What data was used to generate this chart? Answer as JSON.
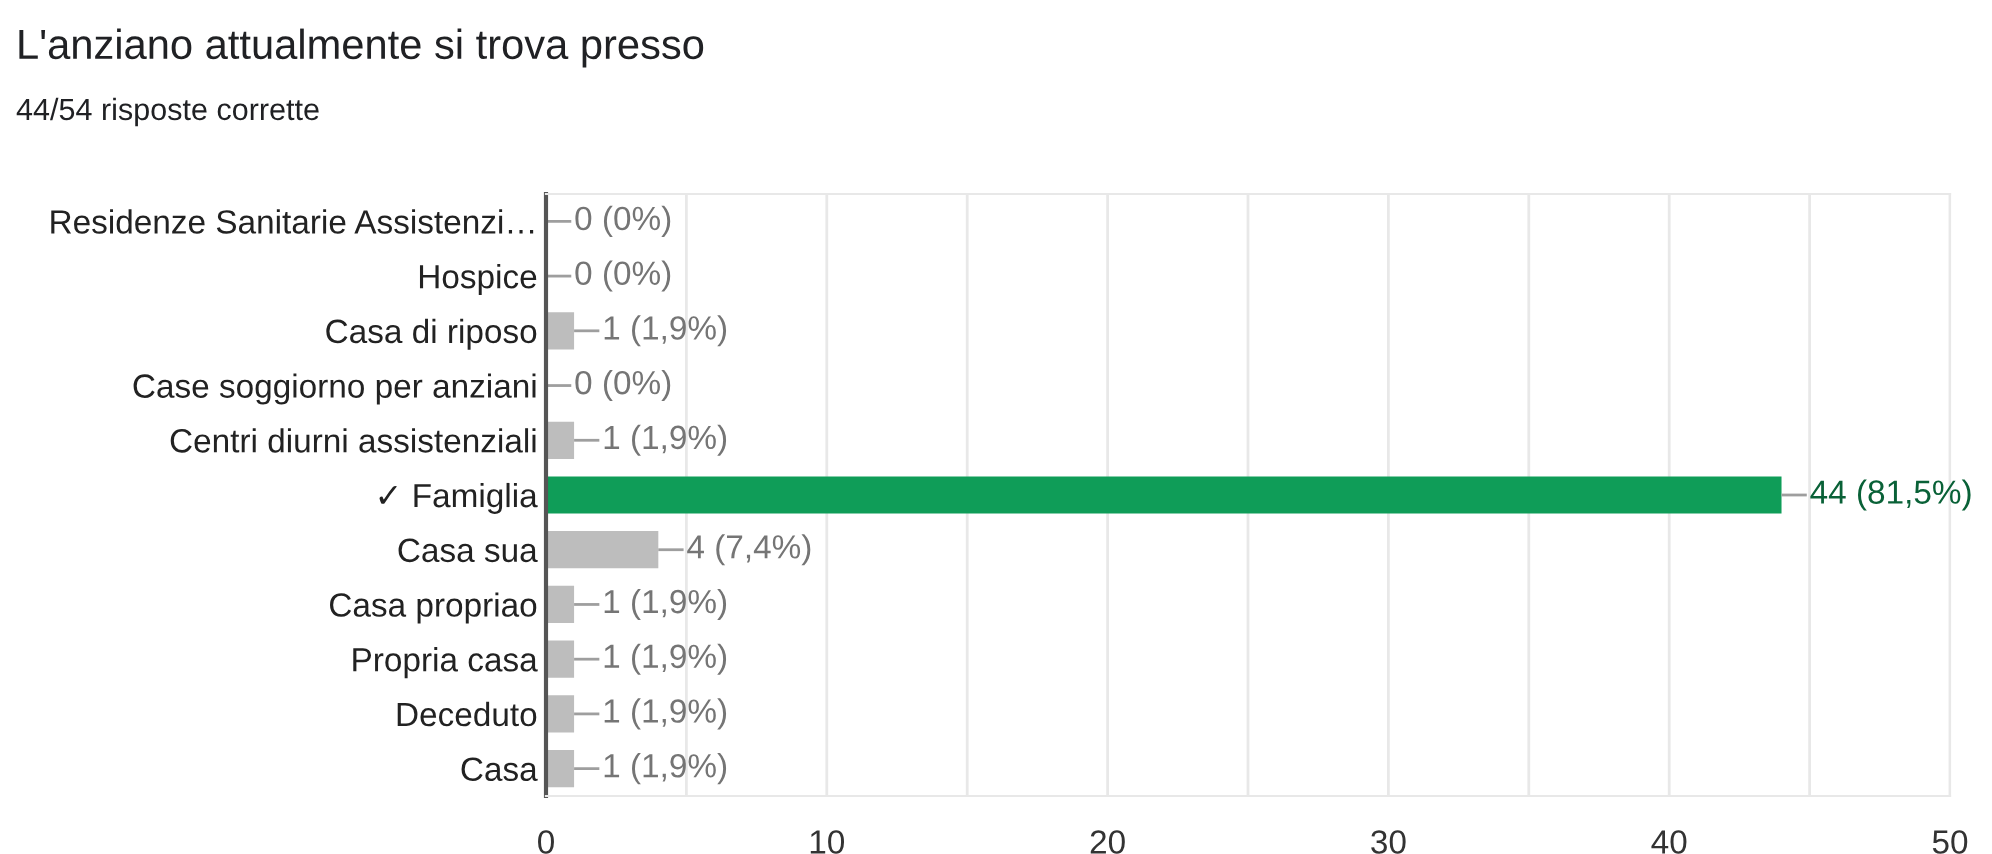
{
  "chart_data": {
    "type": "bar",
    "orientation": "horizontal",
    "title": "L'anziano attualmente si trova presso",
    "subtitle": "44/54 risposte corrette",
    "categories": [
      "Residenze Sanitarie Assistenzi…",
      "Hospice",
      "Casa di riposo",
      "Case soggiorno per anziani",
      "Centri diurni assistenziali",
      "✓ Famiglia",
      "Casa sua",
      "Casa propriao",
      "Propria casa",
      "Deceduto",
      "Casa"
    ],
    "values": [
      0,
      0,
      1,
      0,
      1,
      44,
      4,
      1,
      1,
      1,
      1
    ],
    "colors": [
      "#bdbdbd",
      "#bdbdbd",
      "#bdbdbd",
      "#bdbdbd",
      "#bdbdbd",
      "#0f9d58",
      "#bdbdbd",
      "#bdbdbd",
      "#bdbdbd",
      "#bdbdbd",
      "#bdbdbd"
    ],
    "value_labels": [
      "0 (0%)",
      "0 (0%)",
      "1 (1,9%)",
      "0 (0%)",
      "1 (1,9%)",
      "44 (81,5%)",
      "4 (7,4%)",
      "1 (1,9%)",
      "1 (1,9%)",
      "1 (1,9%)",
      "1 (1,9%)"
    ],
    "xlim": [
      0,
      50
    ],
    "xticks": [
      0,
      {
        "value": 5,
        "label": null
      },
      10,
      {
        "value": 15,
        "label": null
      },
      20,
      {
        "value": 25,
        "label": null
      },
      30,
      {
        "value": 35,
        "label": null
      },
      40,
      {
        "value": 45,
        "label": null
      },
      50
    ],
    "grid": "x"
  }
}
